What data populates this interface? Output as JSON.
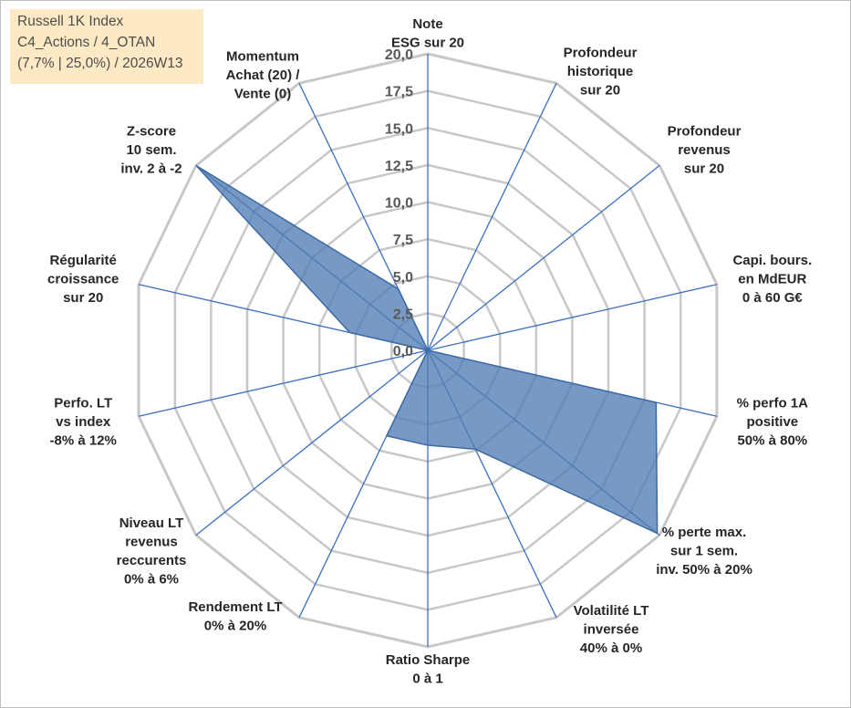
{
  "info_box": {
    "line1": "Russell 1K Index",
    "line2": "C4_Actions / 4_OTAN",
    "line3": "(7,7% | 25,0%) / 2026W13"
  },
  "chart_data": {
    "type": "radar",
    "title": "",
    "rmax": 20,
    "ticks": [
      "0,0",
      "2,5",
      "5,0",
      "7,5",
      "10,0",
      "12,5",
      "15,0",
      "17,5",
      "20,0"
    ],
    "tick_values": [
      0,
      2.5,
      5,
      7.5,
      10,
      12.5,
      15,
      17.5,
      20
    ],
    "axes": [
      [
        "Note",
        "ESG sur 20"
      ],
      [
        "Profondeur",
        "historique",
        "sur 20"
      ],
      [
        "Profondeur",
        "revenus",
        "sur 20"
      ],
      [
        "Capi. bours.",
        "en MdEUR",
        "0 à 60 G€"
      ],
      [
        "% perfo 1A",
        "positive",
        "50% à 80%"
      ],
      [
        "% perte max.",
        "sur 1 sem.",
        "inv. 50% à 20%"
      ],
      [
        "Volatilité LT",
        "inversée",
        "40% à 0%"
      ],
      [
        "Ratio Sharpe",
        "0 à 1"
      ],
      [
        "Rendement LT",
        "0% à 20%"
      ],
      [
        "Niveau LT",
        "revenus",
        "reccurents",
        "0% à 6%"
      ],
      [
        "Perfo. LT",
        "vs index",
        "-8% à 12%"
      ],
      [
        "Régularité",
        "croissance",
        "sur 20"
      ],
      [
        "Z-score",
        "10 sem.",
        "inv. 2 à -2"
      ],
      [
        "Momentum",
        "Achat (20) /",
        "Vente (0)"
      ]
    ],
    "series": [
      {
        "values": [
          0,
          0,
          0,
          0,
          15.8,
          19.8,
          7.4,
          6.4,
          6.4,
          0,
          0,
          5.4,
          20,
          4.6
        ]
      }
    ],
    "colors": {
      "fill": "#4f7db5",
      "stroke": "#3d6aa3",
      "grid": "#c8c8c8",
      "spoke": "#3b6fc1",
      "text": "#262626",
      "tick_text": "#595959"
    }
  }
}
